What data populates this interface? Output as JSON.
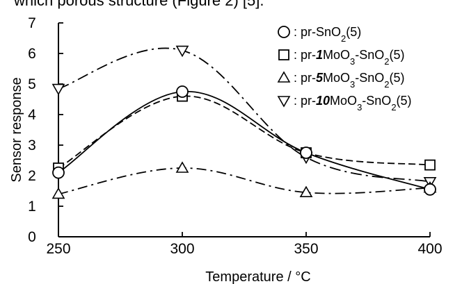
{
  "caption_fragment": "which porous structure (Figure 2) [5].",
  "chart_data": {
    "type": "line",
    "xlabel": "Temperature / °C",
    "ylabel": "Sensor response",
    "xlim": [
      250,
      400
    ],
    "ylim": [
      0,
      7
    ],
    "x_ticks": [
      250,
      300,
      350,
      400
    ],
    "y_ticks": [
      0,
      1,
      2,
      3,
      4,
      5,
      6,
      7
    ],
    "grid": false,
    "legend_position": "top-right",
    "x": [
      250,
      300,
      350,
      400
    ],
    "series": [
      {
        "name_parts": [
          "pr-SnO",
          "2",
          "(5)"
        ],
        "name_italic": "",
        "marker": "circle",
        "line": "solid",
        "values": [
          2.1,
          4.75,
          2.75,
          1.55
        ]
      },
      {
        "name_parts": [
          "pr-",
          "1",
          "MoO",
          "3",
          "-SnO",
          "2",
          "(5)"
        ],
        "marker": "square",
        "line": "dashed",
        "values": [
          2.25,
          4.6,
          2.75,
          2.35
        ]
      },
      {
        "name_parts": [
          "pr-",
          "5",
          "MoO",
          "3",
          "-SnO",
          "2",
          "(5)"
        ],
        "marker": "triangle-up",
        "line": "dash-dot",
        "values": [
          1.4,
          2.25,
          1.45,
          1.6
        ]
      },
      {
        "name_parts": [
          "pr-",
          "10",
          "MoO",
          "3",
          "-SnO",
          "2",
          "(5)"
        ],
        "marker": "triangle-down",
        "line": "dash-dot-long",
        "values": [
          4.85,
          6.1,
          2.6,
          1.8
        ]
      }
    ]
  }
}
